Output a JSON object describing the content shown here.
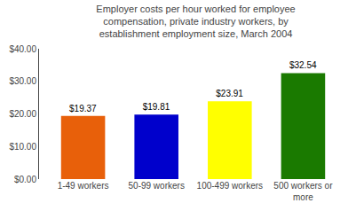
{
  "chart_data": {
    "type": "bar",
    "title": "Employer costs per hour worked for employee\ncompensation, private industry workers, by\nestablishment employment size, March 2004",
    "categories": [
      "1-49 workers",
      "50-99 workers",
      "100-499 workers",
      "500 workers or\nmore"
    ],
    "values": [
      19.37,
      19.81,
      23.91,
      32.54
    ],
    "value_labels": [
      "$19.37",
      "$19.81",
      "$23.91",
      "$32.54"
    ],
    "colors": [
      "#e8600a",
      "#0000cc",
      "#ffff00",
      "#1a7a00"
    ],
    "ylim": [
      0,
      40
    ],
    "yticks": [
      {
        "value": 0,
        "label": "$0.00"
      },
      {
        "value": 10,
        "label": "$10.00"
      },
      {
        "value": 20,
        "label": "$20.00"
      },
      {
        "value": 30,
        "label": "$30.00"
      },
      {
        "value": 40,
        "label": "$40.00"
      }
    ],
    "grid": false,
    "data_labels": true
  }
}
